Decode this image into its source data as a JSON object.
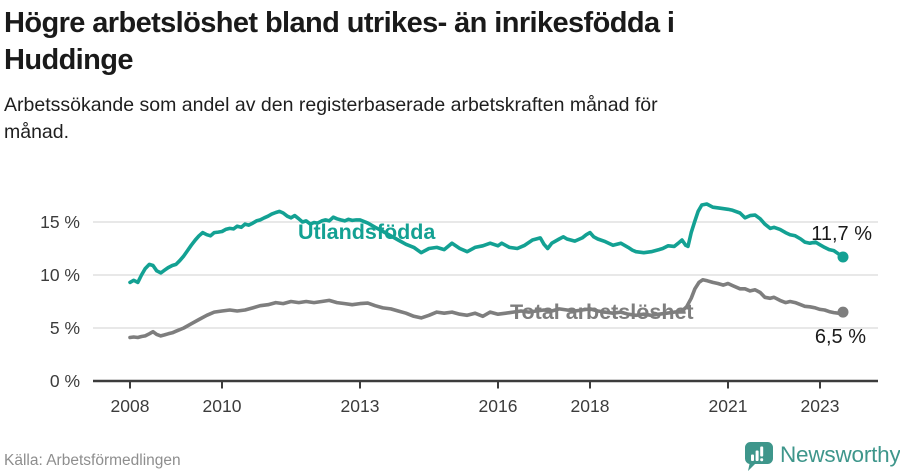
{
  "header": {
    "title": "Högre arbetslöshet bland utrikes- än inrikesfödda i Huddinge",
    "subtitle": "Arbetssökande som andel av den registerbaserade arbetskraften månad för månad."
  },
  "footer": {
    "source": "Källa: Arbetsförmedlingen",
    "brand": "Newsworthy",
    "brand_color": "#3E968B"
  },
  "colors": {
    "axis": "#3C3C3C",
    "grid": "#DBDBDB",
    "tick_text": "#3C3C3C",
    "end_label_text": "#1A1A1A",
    "background": "#FFFFFF"
  },
  "chart_data": {
    "type": "line",
    "title": "Högre arbetslöshet bland utrikes- än inrikesfödda i Huddinge",
    "subtitle": "Arbetssökande som andel av den registerbaserade arbetskraften månad för månad.",
    "unit": "%",
    "grid": "horizontal",
    "xlim": [
      2007.2,
      2024.25
    ],
    "ylim": [
      0,
      18.9
    ],
    "x_ticks": [
      {
        "value": 2008,
        "label": "2008"
      },
      {
        "value": 2010,
        "label": "2010"
      },
      {
        "value": 2013,
        "label": "2013"
      },
      {
        "value": 2016,
        "label": "2016"
      },
      {
        "value": 2018,
        "label": "2018"
      },
      {
        "value": 2021,
        "label": "2021"
      },
      {
        "value": 2023,
        "label": "2023"
      }
    ],
    "y_ticks": [
      {
        "value": 0,
        "label": "0 %"
      },
      {
        "value": 5,
        "label": "5 %"
      },
      {
        "value": 10,
        "label": "10 %"
      },
      {
        "value": 15,
        "label": "15 %"
      }
    ],
    "series": [
      {
        "name": "Utlandsfödda",
        "color": "#13A193",
        "end_label": "11,7 %",
        "end_value": 11.7,
        "points": [
          [
            2008.0,
            9.3
          ],
          [
            2008.08,
            9.5
          ],
          [
            2008.17,
            9.3
          ],
          [
            2008.25,
            10.0
          ],
          [
            2008.33,
            10.6
          ],
          [
            2008.42,
            11.0
          ],
          [
            2008.5,
            10.9
          ],
          [
            2008.58,
            10.4
          ],
          [
            2008.67,
            10.2
          ],
          [
            2008.75,
            10.45
          ],
          [
            2008.83,
            10.7
          ],
          [
            2008.92,
            10.9
          ],
          [
            2009.0,
            11.0
          ],
          [
            2009.08,
            11.35
          ],
          [
            2009.17,
            11.8
          ],
          [
            2009.25,
            12.3
          ],
          [
            2009.33,
            12.8
          ],
          [
            2009.42,
            13.3
          ],
          [
            2009.5,
            13.7
          ],
          [
            2009.58,
            14.0
          ],
          [
            2009.67,
            13.8
          ],
          [
            2009.75,
            13.7
          ],
          [
            2009.83,
            14.0
          ],
          [
            2009.92,
            14.05
          ],
          [
            2010.0,
            14.1
          ],
          [
            2010.08,
            14.3
          ],
          [
            2010.17,
            14.4
          ],
          [
            2010.25,
            14.35
          ],
          [
            2010.33,
            14.6
          ],
          [
            2010.42,
            14.5
          ],
          [
            2010.5,
            14.8
          ],
          [
            2010.58,
            14.7
          ],
          [
            2010.67,
            14.9
          ],
          [
            2010.75,
            15.1
          ],
          [
            2010.83,
            15.2
          ],
          [
            2010.92,
            15.4
          ],
          [
            2011.0,
            15.55
          ],
          [
            2011.08,
            15.75
          ],
          [
            2011.17,
            15.9
          ],
          [
            2011.25,
            16.0
          ],
          [
            2011.33,
            15.85
          ],
          [
            2011.42,
            15.55
          ],
          [
            2011.5,
            15.4
          ],
          [
            2011.58,
            15.6
          ],
          [
            2011.67,
            15.3
          ],
          [
            2011.75,
            15.0
          ],
          [
            2011.83,
            15.1
          ],
          [
            2011.92,
            14.8
          ],
          [
            2012.0,
            14.95
          ],
          [
            2012.08,
            14.9
          ],
          [
            2012.17,
            15.1
          ],
          [
            2012.25,
            15.2
          ],
          [
            2012.33,
            15.1
          ],
          [
            2012.42,
            15.45
          ],
          [
            2012.5,
            15.3
          ],
          [
            2012.58,
            15.2
          ],
          [
            2012.67,
            15.1
          ],
          [
            2012.75,
            15.25
          ],
          [
            2012.83,
            15.15
          ],
          [
            2012.92,
            15.2
          ],
          [
            2013.0,
            15.2
          ],
          [
            2013.17,
            14.9
          ],
          [
            2013.33,
            14.5
          ],
          [
            2013.5,
            14.1
          ],
          [
            2013.67,
            13.7
          ],
          [
            2013.83,
            13.3
          ],
          [
            2014.0,
            12.9
          ],
          [
            2014.17,
            12.6
          ],
          [
            2014.33,
            12.1
          ],
          [
            2014.5,
            12.5
          ],
          [
            2014.67,
            12.6
          ],
          [
            2014.83,
            12.4
          ],
          [
            2015.0,
            13.0
          ],
          [
            2015.17,
            12.5
          ],
          [
            2015.33,
            12.2
          ],
          [
            2015.5,
            12.6
          ],
          [
            2015.67,
            12.75
          ],
          [
            2015.83,
            13.0
          ],
          [
            2016.0,
            12.75
          ],
          [
            2016.08,
            13.0
          ],
          [
            2016.25,
            12.6
          ],
          [
            2016.42,
            12.5
          ],
          [
            2016.58,
            12.8
          ],
          [
            2016.75,
            13.3
          ],
          [
            2016.92,
            13.5
          ],
          [
            2017.0,
            12.9
          ],
          [
            2017.08,
            12.5
          ],
          [
            2017.17,
            13.0
          ],
          [
            2017.33,
            13.4
          ],
          [
            2017.42,
            13.6
          ],
          [
            2017.5,
            13.4
          ],
          [
            2017.67,
            13.2
          ],
          [
            2017.83,
            13.5
          ],
          [
            2017.92,
            13.8
          ],
          [
            2018.0,
            14.0
          ],
          [
            2018.08,
            13.6
          ],
          [
            2018.17,
            13.4
          ],
          [
            2018.33,
            13.15
          ],
          [
            2018.5,
            12.8
          ],
          [
            2018.67,
            13.0
          ],
          [
            2018.83,
            12.6
          ],
          [
            2018.92,
            12.35
          ],
          [
            2019.0,
            12.2
          ],
          [
            2019.17,
            12.1
          ],
          [
            2019.33,
            12.2
          ],
          [
            2019.5,
            12.4
          ],
          [
            2019.58,
            12.5
          ],
          [
            2019.7,
            12.75
          ],
          [
            2019.83,
            12.7
          ],
          [
            2019.92,
            13.0
          ],
          [
            2020.0,
            13.3
          ],
          [
            2020.08,
            12.8
          ],
          [
            2020.13,
            12.7
          ],
          [
            2020.2,
            14.0
          ],
          [
            2020.28,
            15.1
          ],
          [
            2020.35,
            16.0
          ],
          [
            2020.43,
            16.6
          ],
          [
            2020.54,
            16.7
          ],
          [
            2020.67,
            16.4
          ],
          [
            2020.83,
            16.3
          ],
          [
            2021.0,
            16.2
          ],
          [
            2021.1,
            16.1
          ],
          [
            2021.26,
            15.85
          ],
          [
            2021.37,
            15.4
          ],
          [
            2021.48,
            15.6
          ],
          [
            2021.59,
            15.65
          ],
          [
            2021.7,
            15.3
          ],
          [
            2021.8,
            14.8
          ],
          [
            2021.92,
            14.4
          ],
          [
            2022.0,
            14.5
          ],
          [
            2022.13,
            14.3
          ],
          [
            2022.25,
            14.0
          ],
          [
            2022.35,
            13.8
          ],
          [
            2022.46,
            13.7
          ],
          [
            2022.58,
            13.4
          ],
          [
            2022.67,
            13.1
          ],
          [
            2022.78,
            13.0
          ],
          [
            2022.9,
            13.1
          ],
          [
            2023.0,
            12.85
          ],
          [
            2023.1,
            12.6
          ],
          [
            2023.2,
            12.4
          ],
          [
            2023.3,
            12.3
          ],
          [
            2023.4,
            12.0
          ],
          [
            2023.5,
            11.7
          ]
        ]
      },
      {
        "name": "Total arbetslöshet",
        "color": "#7E7E7E",
        "end_label": "6,5 %",
        "end_value": 6.5,
        "points": [
          [
            2008.0,
            4.1
          ],
          [
            2008.08,
            4.15
          ],
          [
            2008.17,
            4.1
          ],
          [
            2008.25,
            4.2
          ],
          [
            2008.33,
            4.25
          ],
          [
            2008.42,
            4.45
          ],
          [
            2008.5,
            4.65
          ],
          [
            2008.58,
            4.4
          ],
          [
            2008.67,
            4.25
          ],
          [
            2008.75,
            4.35
          ],
          [
            2008.83,
            4.45
          ],
          [
            2008.92,
            4.55
          ],
          [
            2009.0,
            4.7
          ],
          [
            2009.17,
            5.0
          ],
          [
            2009.33,
            5.4
          ],
          [
            2009.5,
            5.8
          ],
          [
            2009.67,
            6.2
          ],
          [
            2009.83,
            6.5
          ],
          [
            2010.0,
            6.6
          ],
          [
            2010.17,
            6.7
          ],
          [
            2010.33,
            6.6
          ],
          [
            2010.5,
            6.7
          ],
          [
            2010.67,
            6.9
          ],
          [
            2010.83,
            7.1
          ],
          [
            2011.0,
            7.2
          ],
          [
            2011.17,
            7.4
          ],
          [
            2011.33,
            7.3
          ],
          [
            2011.5,
            7.5
          ],
          [
            2011.67,
            7.4
          ],
          [
            2011.83,
            7.5
          ],
          [
            2012.0,
            7.4
          ],
          [
            2012.17,
            7.5
          ],
          [
            2012.33,
            7.6
          ],
          [
            2012.5,
            7.4
          ],
          [
            2012.67,
            7.3
          ],
          [
            2012.83,
            7.2
          ],
          [
            2013.0,
            7.3
          ],
          [
            2013.17,
            7.35
          ],
          [
            2013.33,
            7.1
          ],
          [
            2013.5,
            6.9
          ],
          [
            2013.67,
            6.8
          ],
          [
            2013.83,
            6.6
          ],
          [
            2014.0,
            6.4
          ],
          [
            2014.17,
            6.1
          ],
          [
            2014.33,
            5.95
          ],
          [
            2014.5,
            6.2
          ],
          [
            2014.67,
            6.5
          ],
          [
            2014.83,
            6.4
          ],
          [
            2015.0,
            6.5
          ],
          [
            2015.17,
            6.3
          ],
          [
            2015.33,
            6.2
          ],
          [
            2015.5,
            6.4
          ],
          [
            2015.67,
            6.1
          ],
          [
            2015.83,
            6.5
          ],
          [
            2016.0,
            6.3
          ],
          [
            2016.17,
            6.4
          ],
          [
            2016.33,
            6.5
          ],
          [
            2016.5,
            6.6
          ],
          [
            2016.67,
            6.5
          ],
          [
            2016.83,
            6.6
          ],
          [
            2017.0,
            6.7
          ],
          [
            2017.17,
            6.6
          ],
          [
            2017.33,
            6.8
          ],
          [
            2017.5,
            6.7
          ],
          [
            2017.67,
            6.6
          ],
          [
            2017.83,
            6.7
          ],
          [
            2018.0,
            6.8
          ],
          [
            2018.17,
            6.6
          ],
          [
            2018.33,
            6.5
          ],
          [
            2018.5,
            6.4
          ],
          [
            2018.67,
            6.5
          ],
          [
            2018.83,
            6.3
          ],
          [
            2019.0,
            6.2
          ],
          [
            2019.17,
            6.3
          ],
          [
            2019.33,
            6.2
          ],
          [
            2019.5,
            6.3
          ],
          [
            2019.67,
            6.4
          ],
          [
            2019.83,
            6.5
          ],
          [
            2020.0,
            6.6
          ],
          [
            2020.1,
            7.0
          ],
          [
            2020.2,
            7.8
          ],
          [
            2020.28,
            8.7
          ],
          [
            2020.37,
            9.3
          ],
          [
            2020.45,
            9.55
          ],
          [
            2020.55,
            9.45
          ],
          [
            2020.67,
            9.3
          ],
          [
            2020.78,
            9.2
          ],
          [
            2020.9,
            9.05
          ],
          [
            2021.0,
            9.2
          ],
          [
            2021.1,
            9.0
          ],
          [
            2021.26,
            8.7
          ],
          [
            2021.37,
            8.7
          ],
          [
            2021.48,
            8.5
          ],
          [
            2021.59,
            8.6
          ],
          [
            2021.7,
            8.35
          ],
          [
            2021.8,
            7.9
          ],
          [
            2021.92,
            7.8
          ],
          [
            2022.0,
            7.9
          ],
          [
            2022.13,
            7.6
          ],
          [
            2022.25,
            7.4
          ],
          [
            2022.35,
            7.5
          ],
          [
            2022.46,
            7.4
          ],
          [
            2022.58,
            7.2
          ],
          [
            2022.67,
            7.05
          ],
          [
            2022.78,
            7.0
          ],
          [
            2022.9,
            6.9
          ],
          [
            2023.0,
            6.75
          ],
          [
            2023.1,
            6.7
          ],
          [
            2023.2,
            6.55
          ],
          [
            2023.3,
            6.45
          ],
          [
            2023.4,
            6.4
          ],
          [
            2023.5,
            6.5
          ]
        ]
      }
    ],
    "legend_position": "inline-labels"
  }
}
